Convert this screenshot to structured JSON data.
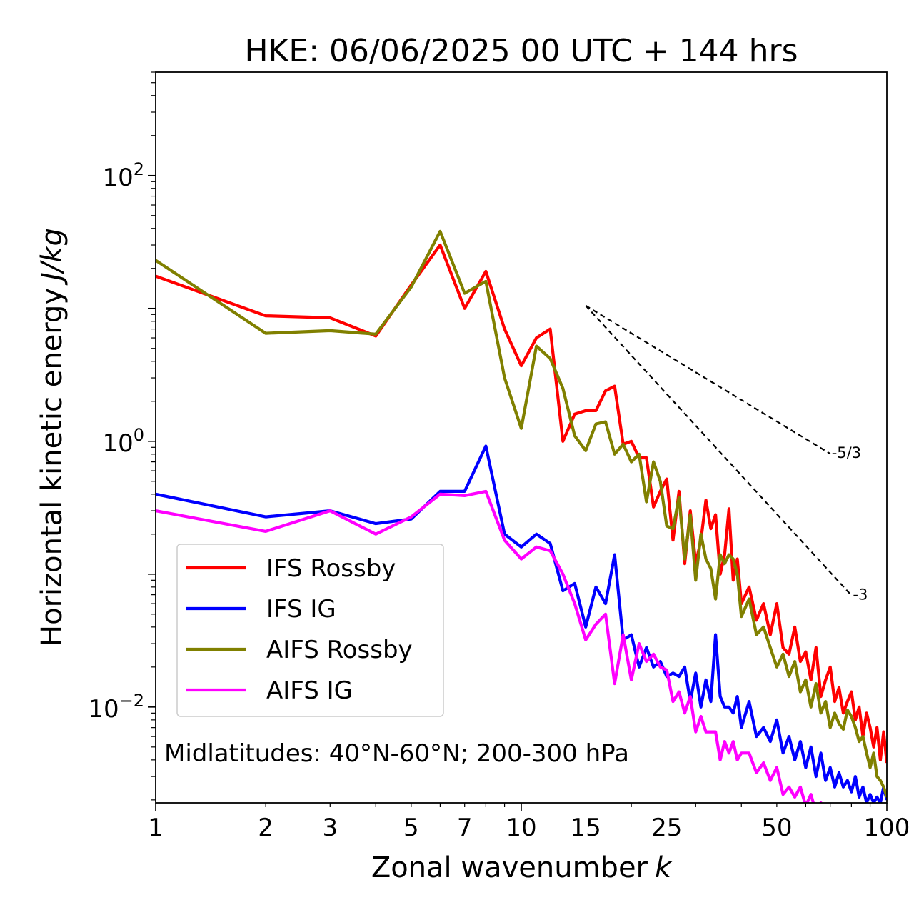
{
  "chart_data": {
    "type": "line",
    "title": "HKE: 06/06/2025 00 UTC + 144 hrs",
    "xlabel": "Zonal wavenumber",
    "xlabel_var": "k",
    "ylabel": "Horizontal kinetic energy",
    "ylabel_unit": "J/kg",
    "xscale": "log",
    "yscale": "log",
    "xlim": [
      1,
      100
    ],
    "ylim": [
      0.0019,
      600
    ],
    "x_ticks": [
      1,
      2,
      3,
      5,
      7,
      10,
      15,
      25,
      50,
      100
    ],
    "x_tick_labels": [
      "1",
      "2",
      "3",
      "5",
      "7",
      "10",
      "15",
      "25",
      "50",
      "100"
    ],
    "y_ticks": [
      {
        "value": 100,
        "base": "10",
        "exp": "2"
      },
      {
        "value": 1,
        "base": "10",
        "exp": "0"
      },
      {
        "value": 0.01,
        "base": "10",
        "exp": "−2"
      }
    ],
    "legend_position": "lower-left",
    "annotation": "Midlatitudes: 40°N-60°N; 200-300 hPa",
    "reference_lines": [
      {
        "label": "-5/3",
        "slope": -1.6667,
        "x_start": 15,
        "y_start": 10.5,
        "x_end": 70
      },
      {
        "label": "-3",
        "slope": -3,
        "x_start": 15,
        "y_start": 10.5,
        "x_end": 80
      }
    ],
    "series": [
      {
        "name": "IFS Rossby",
        "color": "#ff0000",
        "x": [
          1,
          2,
          3,
          4,
          5,
          6,
          7,
          8,
          9,
          10,
          11,
          12,
          13,
          14,
          15,
          16,
          17,
          18,
          19,
          20,
          21,
          22,
          23,
          24,
          25,
          26,
          27,
          28,
          29,
          30,
          31,
          32,
          33,
          34,
          35,
          36,
          37,
          38,
          39,
          40,
          42,
          44,
          46,
          48,
          50,
          52,
          54,
          56,
          58,
          60,
          62,
          64,
          66,
          68,
          70,
          72,
          74,
          76,
          78,
          80,
          82,
          84,
          86,
          88,
          90,
          92,
          94,
          96,
          98,
          100
        ],
        "y": [
          17.5,
          8.8,
          8.5,
          6.2,
          15,
          30,
          10,
          19,
          7,
          3.7,
          6,
          7,
          1.0,
          1.6,
          1.7,
          1.7,
          2.4,
          2.6,
          0.95,
          1.0,
          0.75,
          0.75,
          0.32,
          0.42,
          0.52,
          0.18,
          0.42,
          0.12,
          0.3,
          0.12,
          0.18,
          0.36,
          0.22,
          0.28,
          0.1,
          0.14,
          0.31,
          0.09,
          0.13,
          0.06,
          0.08,
          0.045,
          0.06,
          0.035,
          0.06,
          0.028,
          0.025,
          0.04,
          0.022,
          0.026,
          0.016,
          0.028,
          0.012,
          0.016,
          0.02,
          0.011,
          0.014,
          0.009,
          0.011,
          0.013,
          0.008,
          0.01,
          0.006,
          0.009,
          0.007,
          0.005,
          0.007,
          0.004,
          0.0065,
          0.0038
        ]
      },
      {
        "name": "IFS IG",
        "color": "#0000ff",
        "x": [
          1,
          2,
          3,
          4,
          5,
          6,
          7,
          8,
          9,
          10,
          11,
          12,
          13,
          14,
          15,
          16,
          17,
          18,
          19,
          20,
          21,
          22,
          23,
          24,
          25,
          26,
          27,
          28,
          29,
          30,
          31,
          32,
          33,
          34,
          35,
          36,
          37,
          38,
          39,
          40,
          42,
          44,
          46,
          48,
          50,
          52,
          54,
          56,
          58,
          60,
          62,
          64,
          66,
          68,
          70,
          72,
          74,
          76,
          78,
          80,
          82,
          84,
          86,
          88,
          90,
          92,
          94,
          96,
          98,
          100
        ],
        "y": [
          0.4,
          0.27,
          0.3,
          0.24,
          0.26,
          0.42,
          0.42,
          0.92,
          0.2,
          0.16,
          0.2,
          0.17,
          0.075,
          0.085,
          0.04,
          0.08,
          0.06,
          0.14,
          0.032,
          0.035,
          0.02,
          0.028,
          0.02,
          0.022,
          0.017,
          0.018,
          0.017,
          0.02,
          0.011,
          0.018,
          0.01,
          0.016,
          0.011,
          0.035,
          0.012,
          0.01,
          0.01,
          0.009,
          0.012,
          0.007,
          0.011,
          0.006,
          0.007,
          0.0055,
          0.008,
          0.0045,
          0.006,
          0.004,
          0.0055,
          0.0035,
          0.005,
          0.003,
          0.0045,
          0.0028,
          0.0035,
          0.0025,
          0.0032,
          0.0025,
          0.0028,
          0.0023,
          0.003,
          0.0021,
          0.0025,
          0.0019,
          0.0022,
          0.0019,
          0.0021,
          0.0019,
          0.0025,
          0.002
        ]
      },
      {
        "name": "AIFS Rossby",
        "color": "#808000",
        "x": [
          1,
          2,
          3,
          4,
          5,
          6,
          7,
          8,
          9,
          10,
          11,
          12,
          13,
          14,
          15,
          16,
          17,
          18,
          19,
          20,
          21,
          22,
          23,
          24,
          25,
          26,
          27,
          28,
          29,
          30,
          31,
          32,
          33,
          34,
          35,
          36,
          37,
          38,
          39,
          40,
          42,
          44,
          46,
          48,
          50,
          52,
          54,
          56,
          58,
          60,
          62,
          64,
          66,
          68,
          70,
          72,
          74,
          76,
          78,
          80,
          82,
          84,
          86,
          88,
          90,
          92,
          94,
          96,
          98,
          100
        ],
        "y": [
          23,
          6.5,
          6.8,
          6.4,
          14.5,
          38,
          13,
          16,
          3.0,
          1.25,
          5.2,
          4.2,
          2.5,
          1.1,
          0.85,
          1.35,
          1.4,
          0.8,
          0.95,
          0.7,
          0.8,
          0.35,
          0.7,
          0.5,
          0.23,
          0.22,
          0.38,
          0.13,
          0.28,
          0.09,
          0.2,
          0.13,
          0.11,
          0.065,
          0.14,
          0.12,
          0.14,
          0.13,
          0.1,
          0.048,
          0.065,
          0.035,
          0.04,
          0.028,
          0.02,
          0.025,
          0.017,
          0.022,
          0.013,
          0.016,
          0.01,
          0.015,
          0.009,
          0.011,
          0.007,
          0.009,
          0.0075,
          0.0068,
          0.0095,
          0.0085,
          0.007,
          0.0055,
          0.006,
          0.0045,
          0.0035,
          0.0045,
          0.003,
          0.0028,
          0.0025,
          0.0021
        ]
      },
      {
        "name": "AIFS IG",
        "color": "#ff00ff",
        "x": [
          1,
          2,
          3,
          4,
          5,
          6,
          7,
          8,
          9,
          10,
          11,
          12,
          13,
          14,
          15,
          16,
          17,
          18,
          19,
          20,
          21,
          22,
          23,
          24,
          25,
          26,
          27,
          28,
          29,
          30,
          31,
          32,
          33,
          34,
          35,
          36,
          37,
          38,
          39,
          40,
          42,
          44,
          46,
          48,
          50,
          52,
          54,
          56,
          58,
          60,
          62,
          64,
          66,
          68,
          70
        ],
        "y": [
          0.3,
          0.21,
          0.3,
          0.2,
          0.27,
          0.4,
          0.39,
          0.42,
          0.18,
          0.13,
          0.16,
          0.15,
          0.1,
          0.06,
          0.032,
          0.042,
          0.05,
          0.015,
          0.035,
          0.016,
          0.03,
          0.022,
          0.025,
          0.02,
          0.019,
          0.011,
          0.013,
          0.009,
          0.012,
          0.0065,
          0.0085,
          0.0065,
          0.0065,
          0.0065,
          0.004,
          0.0055,
          0.0045,
          0.0055,
          0.004,
          0.0045,
          0.0045,
          0.0032,
          0.0038,
          0.0028,
          0.0035,
          0.0022,
          0.0025,
          0.0021,
          0.0025,
          0.0018,
          0.0022,
          0.0016,
          0.0019,
          0.0014,
          0.0016
        ]
      }
    ]
  }
}
